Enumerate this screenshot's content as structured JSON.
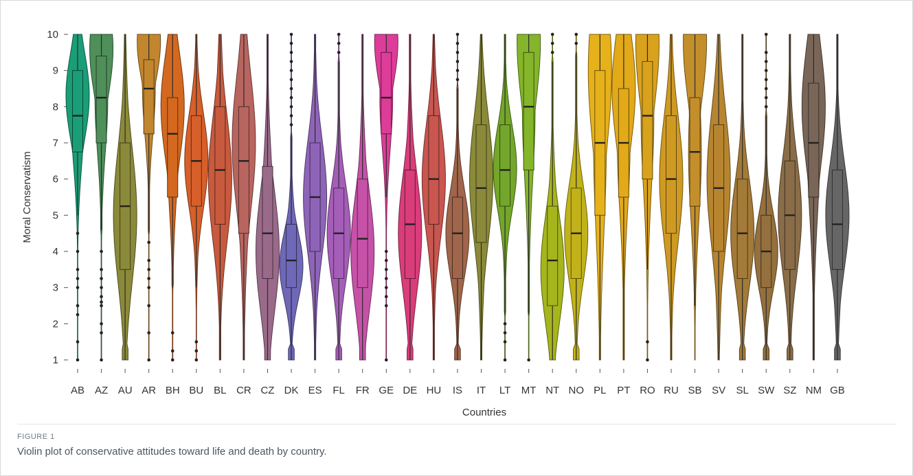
{
  "figure": {
    "label": "FIGURE 1",
    "caption": "Violin plot of conservative attitudes toward life and death by country."
  },
  "chart_data": {
    "type": "violin",
    "xlabel": "Countries",
    "ylabel": "Moral Conservatism",
    "ylim": [
      1,
      10
    ],
    "yticks": [
      1,
      2,
      3,
      4,
      5,
      6,
      7,
      8,
      9,
      10
    ],
    "grid": false,
    "legend": "none",
    "categories": [
      "AB",
      "AZ",
      "AU",
      "AR",
      "BH",
      "BU",
      "BL",
      "CR",
      "CZ",
      "DK",
      "ES",
      "FL",
      "FR",
      "GE",
      "DE",
      "HU",
      "IS",
      "IT",
      "LT",
      "MT",
      "NT",
      "NO",
      "PL",
      "PT",
      "RO",
      "RU",
      "SB",
      "SV",
      "SL",
      "SW",
      "SZ",
      "NM",
      "GB"
    ],
    "series": [
      {
        "country": "AB",
        "color": "#1a9e77",
        "q1": 6.75,
        "median": 7.75,
        "q3": 9,
        "whisker_low": 5,
        "whisker_high": 10,
        "mode": 8.3,
        "outliers": [
          1,
          1.5,
          2.25,
          2.5,
          3,
          3.25,
          3.5,
          4,
          4.5
        ]
      },
      {
        "country": "AZ",
        "color": "#4e8f5a",
        "q1": 7,
        "median": 8.25,
        "q3": 9.4,
        "whisker_low": 4.6,
        "whisker_high": 10,
        "mode": 9.6,
        "outliers": [
          1,
          1.75,
          2,
          2.5,
          2.6,
          2.75,
          3,
          3.25,
          3.5,
          4
        ]
      },
      {
        "country": "AU",
        "color": "#8a8a3a",
        "q1": 3.5,
        "median": 5.25,
        "q3": 7,
        "whisker_low": 1,
        "whisker_high": 10,
        "mode": 5,
        "outliers": []
      },
      {
        "country": "AR",
        "color": "#c2862f",
        "q1": 7.25,
        "median": 8.5,
        "q3": 9.3,
        "whisker_low": 4.5,
        "whisker_high": 10,
        "mode": 9.8,
        "outliers": [
          1,
          1.75,
          2.5,
          3,
          3.25,
          3.5,
          3.75,
          4.25
        ]
      },
      {
        "country": "BH",
        "color": "#d4681f",
        "q1": 5.5,
        "median": 7.25,
        "q3": 8.25,
        "whisker_low": 3,
        "whisker_high": 10,
        "mode": 8,
        "outliers": [
          1,
          1.25,
          1.75
        ]
      },
      {
        "country": "BU",
        "color": "#d65f2a",
        "q1": 5.25,
        "median": 6.5,
        "q3": 7.75,
        "whisker_low": 3,
        "whisker_high": 10,
        "mode": 6.5,
        "outliers": [
          1,
          1.25,
          1.5
        ]
      },
      {
        "country": "BL",
        "color": "#c85a3e",
        "q1": 4.75,
        "median": 6.25,
        "q3": 8,
        "whisker_low": 1,
        "whisker_high": 10,
        "mode": 6,
        "outliers": []
      },
      {
        "country": "CR",
        "color": "#b86560",
        "q1": 4.5,
        "median": 6.5,
        "q3": 8,
        "whisker_low": 1,
        "whisker_high": 10,
        "mode": 7,
        "outliers": []
      },
      {
        "country": "CZ",
        "color": "#9a6a8a",
        "q1": 3.25,
        "median": 4.5,
        "q3": 6.35,
        "whisker_low": 1,
        "whisker_high": 10,
        "mode": 4,
        "outliers": []
      },
      {
        "country": "DK",
        "color": "#6f68b8",
        "q1": 3,
        "median": 3.75,
        "q3": 4.75,
        "whisker_low": 1,
        "whisker_high": 7.25,
        "mode": 3.6,
        "outliers": [
          7.5,
          7.75,
          8,
          8.25,
          8.5,
          8.75,
          9,
          9.25,
          9.5,
          9.75,
          10
        ]
      },
      {
        "country": "ES",
        "color": "#8e64b8",
        "q1": 4,
        "median": 5.5,
        "q3": 7,
        "whisker_low": 1,
        "whisker_high": 10,
        "mode": 5.5,
        "outliers": []
      },
      {
        "country": "FL",
        "color": "#a55eb8",
        "q1": 3.25,
        "median": 4.5,
        "q3": 5.75,
        "whisker_low": 1,
        "whisker_high": 9.25,
        "mode": 4.5,
        "outliers": [
          9.5,
          9.75,
          10
        ]
      },
      {
        "country": "FR",
        "color": "#c652a8",
        "q1": 3,
        "median": 4.35,
        "q3": 6,
        "whisker_low": 1,
        "whisker_high": 10,
        "mode": 4,
        "outliers": []
      },
      {
        "country": "GE",
        "color": "#dd3d98",
        "q1": 7.25,
        "median": 8.25,
        "q3": 9.5,
        "whisker_low": 5.5,
        "whisker_high": 10,
        "mode": 9.8,
        "outliers": [
          1,
          2.5,
          2.75,
          3,
          3.25,
          3.5,
          3.75,
          4
        ]
      },
      {
        "country": "DE",
        "color": "#d93d7a",
        "q1": 3.25,
        "median": 4.75,
        "q3": 6.25,
        "whisker_low": 1,
        "whisker_high": 10,
        "mode": 4.5,
        "outliers": []
      },
      {
        "country": "HU",
        "color": "#c9564f",
        "q1": 4.75,
        "median": 6,
        "q3": 7.75,
        "whisker_low": 1,
        "whisker_high": 10,
        "mode": 6,
        "outliers": []
      },
      {
        "country": "IS",
        "color": "#a0654a",
        "q1": 3.25,
        "median": 4.5,
        "q3": 5.5,
        "whisker_low": 1,
        "whisker_high": 8.5,
        "mode": 4.5,
        "outliers": [
          8.75,
          9,
          9.25,
          9.5,
          9.75,
          10
        ]
      },
      {
        "country": "IT",
        "color": "#8a8a3a",
        "q1": 4.25,
        "median": 5.75,
        "q3": 7.5,
        "whisker_low": 1,
        "whisker_high": 10,
        "mode": 6,
        "outliers": []
      },
      {
        "country": "LT",
        "color": "#73a62a",
        "q1": 5.25,
        "median": 6.25,
        "q3": 7.5,
        "whisker_low": 2.25,
        "whisker_high": 10,
        "mode": 6.3,
        "outliers": [
          1,
          1.5,
          1.75,
          2
        ]
      },
      {
        "country": "MT",
        "color": "#84b52a",
        "q1": 6.25,
        "median": 8,
        "q3": 9.5,
        "whisker_low": 2.25,
        "whisker_high": 10,
        "mode": 9.8,
        "outliers": [
          1
        ]
      },
      {
        "country": "NT",
        "color": "#a5b51c",
        "q1": 2.5,
        "median": 3.75,
        "q3": 5.25,
        "whisker_low": 1,
        "whisker_high": 9.25,
        "mode": 3.5,
        "outliers": [
          9.5,
          9.75,
          10
        ]
      },
      {
        "country": "NO",
        "color": "#c2b21a",
        "q1": 3.25,
        "median": 4.5,
        "q3": 5.75,
        "whisker_low": 1,
        "whisker_high": 9.5,
        "mode": 4.5,
        "outliers": [
          9.75,
          10
        ]
      },
      {
        "country": "PL",
        "color": "#e6b11a",
        "q1": 5,
        "median": 7,
        "q3": 9,
        "whisker_low": 1,
        "whisker_high": 10,
        "mode": 9,
        "outliers": []
      },
      {
        "country": "PT",
        "color": "#e2a918",
        "q1": 5.5,
        "median": 7,
        "q3": 8.5,
        "whisker_low": 1,
        "whisker_high": 10,
        "mode": 8.5,
        "outliers": []
      },
      {
        "country": "RO",
        "color": "#d9a21c",
        "q1": 6,
        "median": 7.75,
        "q3": 9.25,
        "whisker_low": 3.5,
        "whisker_high": 10,
        "mode": 9.75,
        "outliers": [
          1,
          1.5
        ]
      },
      {
        "country": "RU",
        "color": "#cf9a22",
        "q1": 4.5,
        "median": 6,
        "q3": 7.75,
        "whisker_low": 1,
        "whisker_high": 10,
        "mode": 6,
        "outliers": []
      },
      {
        "country": "SB",
        "color": "#c48f2a",
        "q1": 5.25,
        "median": 6.75,
        "q3": 8.25,
        "whisker_low": 2.5,
        "whisker_high": 10,
        "mode": 9.8,
        "outliers": []
      },
      {
        "country": "SV",
        "color": "#b78530",
        "q1": 4,
        "median": 5.75,
        "q3": 7.5,
        "whisker_low": 1,
        "whisker_high": 10,
        "mode": 6,
        "outliers": []
      },
      {
        "country": "SL",
        "color": "#a47a38",
        "q1": 3.25,
        "median": 4.5,
        "q3": 6,
        "whisker_low": 1,
        "whisker_high": 10,
        "mode": 4.5,
        "outliers": []
      },
      {
        "country": "SW",
        "color": "#94703e",
        "q1": 3,
        "median": 4,
        "q3": 5,
        "whisker_low": 1,
        "whisker_high": 7.75,
        "mode": 4,
        "outliers": [
          8,
          8.25,
          8.5,
          8.75,
          9,
          9.25,
          9.5,
          10
        ]
      },
      {
        "country": "SZ",
        "color": "#8a6d48",
        "q1": 3.5,
        "median": 5,
        "q3": 6.5,
        "whisker_low": 1,
        "whisker_high": 10,
        "mode": 5,
        "outliers": []
      },
      {
        "country": "NM",
        "color": "#7a6658",
        "q1": 5.5,
        "median": 7,
        "q3": 8.65,
        "whisker_low": 1,
        "whisker_high": 10,
        "mode": 8,
        "outliers": []
      },
      {
        "country": "GB",
        "color": "#666666",
        "q1": 3.5,
        "median": 4.75,
        "q3": 6.25,
        "whisker_low": 1,
        "whisker_high": 10,
        "mode": 5,
        "outliers": []
      }
    ]
  }
}
